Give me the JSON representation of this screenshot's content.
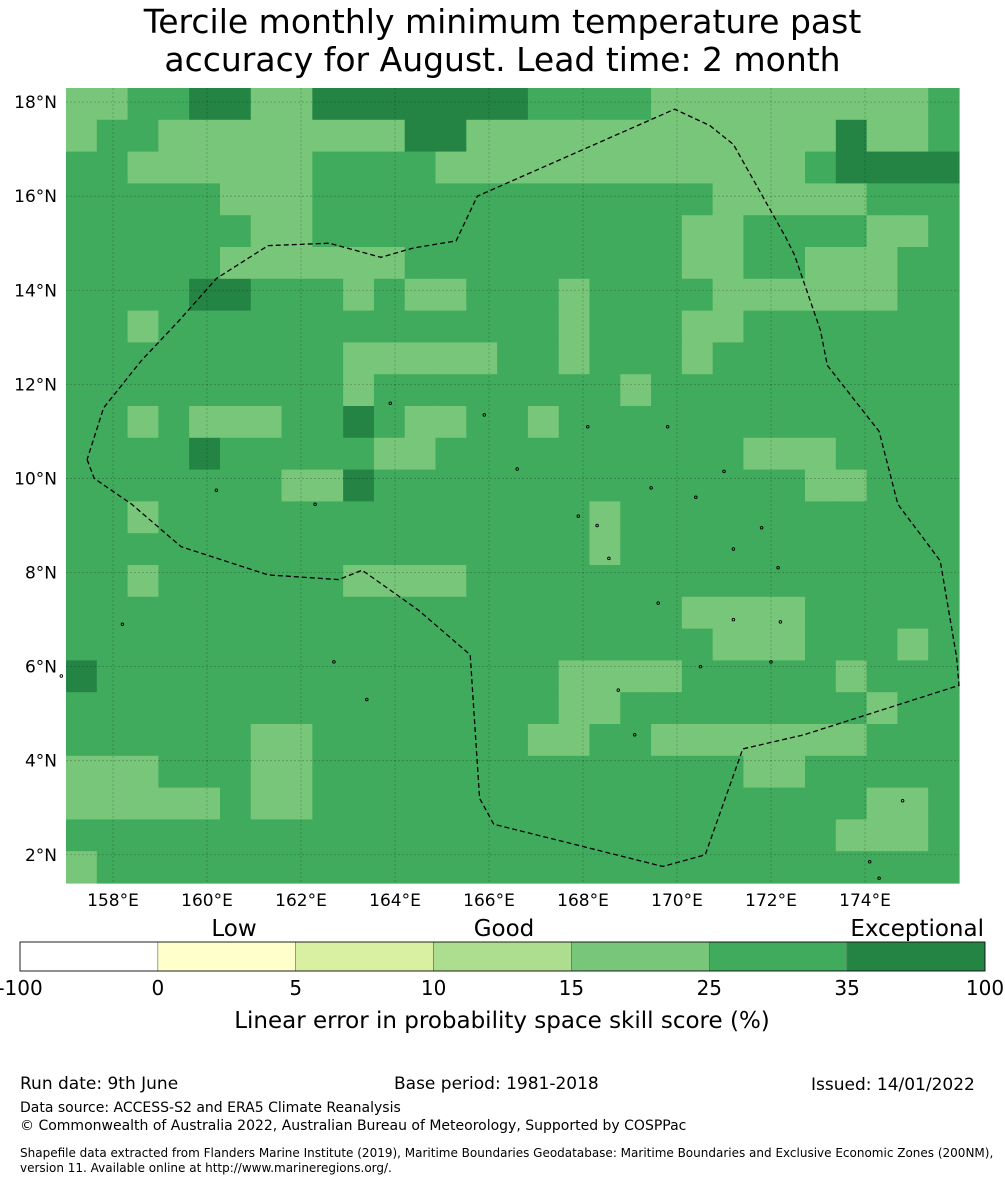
{
  "title": {
    "line1": "Tercile monthly minimum temperature past",
    "line2": "accuracy for August. Lead time: 2 month"
  },
  "map": {
    "lon_range": [
      157.0,
      176.0
    ],
    "lat_range": [
      1.4,
      18.3
    ],
    "lon_ticks": [
      "158°E",
      "160°E",
      "162°E",
      "164°E",
      "166°E",
      "168°E",
      "170°E",
      "172°E",
      "174°E"
    ],
    "lat_ticks": [
      "2°N",
      "4°N",
      "6°N",
      "8°N",
      "10°N",
      "12°N",
      "14°N",
      "16°N",
      "18°N"
    ],
    "grid_resolution_deg": 0.83,
    "grid_rows": [
      "55443355333333344445555555554",
      "54455555555335555555555553554",
      "44555555444455555555555543333",
      "44444555444444444444455555444",
      "44444455444444444444554444554",
      "44444555555444444444554455544",
      "44443344454554445444455555544",
      "44544444444444445444554444444",
      "44444444455555445444544444444",
      "44444444454444444454444444444",
      "44545554434554454444444444444",
      "44443444445544444444445554444",
      "44444445534444444444444455444",
      "44544444444444444544444444444",
      "44444444444444444544444444444",
      "44544444455554444444444444444",
      "44444444444444444444555544444",
      "44444444444444444444455544454",
      "34444444444444445555444445444",
      "44444444444444445544444444544",
      "44444455444444455445555555444",
      "55544455444444444444445544444",
      "55555455444444444444444444554",
      "44444444444444444444444445554",
      "54444444444444444444444444444"
    ],
    "color_scale": {
      "3": "#238443",
      "4": "#41ab5d",
      "5": "#78c679"
    },
    "boundary_lonlat": [
      [
        157.45,
        10.4
      ],
      [
        157.6,
        10.0
      ],
      [
        158.4,
        9.45
      ],
      [
        159.45,
        8.55
      ],
      [
        161.3,
        7.95
      ],
      [
        162.8,
        7.85
      ],
      [
        163.3,
        8.05
      ],
      [
        164.5,
        7.2
      ],
      [
        165.6,
        6.25
      ],
      [
        165.8,
        3.2
      ],
      [
        166.1,
        2.65
      ],
      [
        169.7,
        1.75
      ],
      [
        170.6,
        2.0
      ],
      [
        171.4,
        4.25
      ],
      [
        172.7,
        4.55
      ],
      [
        176.0,
        5.6
      ],
      [
        175.95,
        6.2
      ],
      [
        175.6,
        8.25
      ],
      [
        174.7,
        9.45
      ],
      [
        174.3,
        11.0
      ],
      [
        173.2,
        12.4
      ],
      [
        173.05,
        13.15
      ],
      [
        172.5,
        14.75
      ],
      [
        172.3,
        15.15
      ],
      [
        171.2,
        17.1
      ],
      [
        170.7,
        17.5
      ],
      [
        169.95,
        17.85
      ],
      [
        165.75,
        16.0
      ],
      [
        165.3,
        15.05
      ],
      [
        164.4,
        14.9
      ],
      [
        163.7,
        14.7
      ],
      [
        162.6,
        15.0
      ],
      [
        161.3,
        14.95
      ],
      [
        160.2,
        14.25
      ],
      [
        159.4,
        13.35
      ],
      [
        158.6,
        12.5
      ],
      [
        157.8,
        11.5
      ],
      [
        157.45,
        10.4
      ]
    ],
    "islands_lonlat": [
      [
        158.2,
        6.9
      ],
      [
        156.9,
        5.8
      ],
      [
        163.4,
        5.3
      ],
      [
        165.9,
        11.35
      ],
      [
        163.9,
        11.6
      ],
      [
        168.1,
        11.1
      ],
      [
        169.8,
        11.1
      ],
      [
        166.6,
        10.2
      ],
      [
        170.4,
        9.6
      ],
      [
        171.0,
        10.15
      ],
      [
        160.2,
        9.75
      ],
      [
        169.45,
        9.8
      ],
      [
        168.3,
        9.0
      ],
      [
        167.9,
        9.2
      ],
      [
        168.55,
        8.3
      ],
      [
        169.6,
        7.35
      ],
      [
        171.2,
        7.0
      ],
      [
        172.2,
        6.95
      ],
      [
        172.0,
        6.1
      ],
      [
        170.5,
        6.0
      ],
      [
        168.75,
        5.5
      ],
      [
        169.1,
        4.55
      ],
      [
        174.8,
        3.15
      ],
      [
        174.1,
        1.85
      ],
      [
        174.3,
        1.5
      ],
      [
        162.3,
        9.45
      ],
      [
        162.7,
        6.1
      ],
      [
        171.8,
        8.95
      ],
      [
        171.2,
        8.5
      ],
      [
        172.15,
        8.1
      ]
    ]
  },
  "legend": {
    "category_low": "Low",
    "category_good": "Good",
    "category_exceptional": "Exceptional",
    "boundaries": [
      "-100",
      "0",
      "5",
      "10",
      "15",
      "25",
      "35",
      "100"
    ],
    "colors": [
      "#ffffff",
      "#ffffcc",
      "#d9f0a3",
      "#addd8e",
      "#78c679",
      "#41ab5d",
      "#238443"
    ],
    "label": "Linear error in probability space skill score (%)"
  },
  "footer": {
    "run_date": "Run date: 9th June",
    "base_period": "Base period: 1981-2018",
    "issued": "Issued: 14/01/2022",
    "data_source": "Data source: ACCESS-S2 and ERA5 Climate Reanalysis",
    "copyright": "© Commonwealth of Australia 2022, Australian Bureau of Meteorology, Supported by COSPPac",
    "shapefile_line1": "Shapefile data extracted from Flanders Marine Institute (2019), Maritime Boundaries Geodatabase: Maritime Boundaries and Exclusive Economic Zones (200NM),",
    "shapefile_line2": "version 11. Available online at http://www.marineregions.org/."
  }
}
